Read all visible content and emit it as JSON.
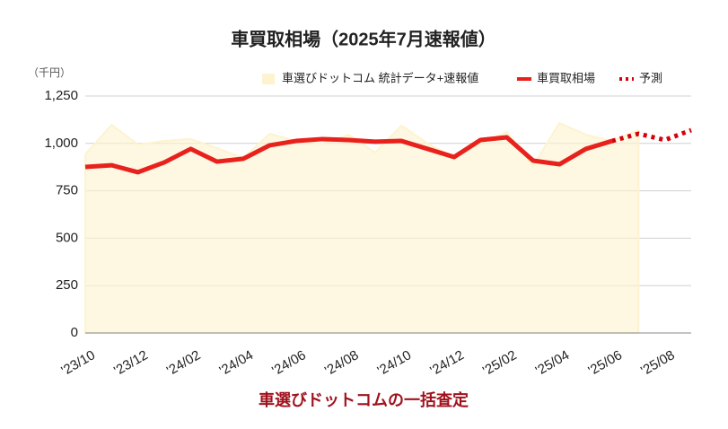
{
  "chart_data": {
    "type": "line",
    "title": "車買取相場（2025年7月速報値）",
    "y_unit": "（千円）",
    "footer": "車選びドットコムの一括査定",
    "categories": [
      "'23/10",
      null,
      "'23/12",
      null,
      "'24/02",
      null,
      "'24/04",
      null,
      "'24/06",
      null,
      "'24/08",
      null,
      "'24/10",
      null,
      "'24/12",
      null,
      "'25/02",
      null,
      "'25/04",
      null,
      "'25/06",
      null,
      "'25/08",
      null
    ],
    "series": [
      {
        "name": "車選びドットコム 統計データ+速報値",
        "kind": "area",
        "color": "#fdf3cf",
        "values": [
          942,
          1098,
          994,
          1013,
          1023,
          975,
          923,
          1051,
          1013,
          999,
          1046,
          952,
          1094,
          999,
          928,
          999,
          1061,
          881,
          1108,
          1046,
          1013,
          1070,
          null,
          null
        ]
      },
      {
        "name": "車買取相場",
        "kind": "line",
        "color": "#e8211c",
        "values": [
          876,
          885,
          848,
          900,
          971,
          904,
          919,
          990,
          1013,
          1023,
          1018,
          1009,
          1013,
          971,
          928,
          1018,
          1032,
          909,
          890,
          971,
          1013,
          null,
          null,
          null
        ]
      },
      {
        "name": "予測",
        "kind": "dotted",
        "color": "#d4000c",
        "values": [
          null,
          null,
          null,
          null,
          null,
          null,
          null,
          null,
          null,
          null,
          null,
          null,
          null,
          null,
          null,
          null,
          null,
          null,
          null,
          null,
          1013,
          1051,
          1018,
          1070
        ]
      }
    ],
    "ylim": [
      0,
      1250
    ],
    "yticks": [
      0,
      250,
      500,
      750,
      {
        "value": 1000,
        "label": "1,000"
      },
      {
        "value": 1250,
        "label": "1,250"
      }
    ],
    "grid": true,
    "legend": "top-right"
  }
}
